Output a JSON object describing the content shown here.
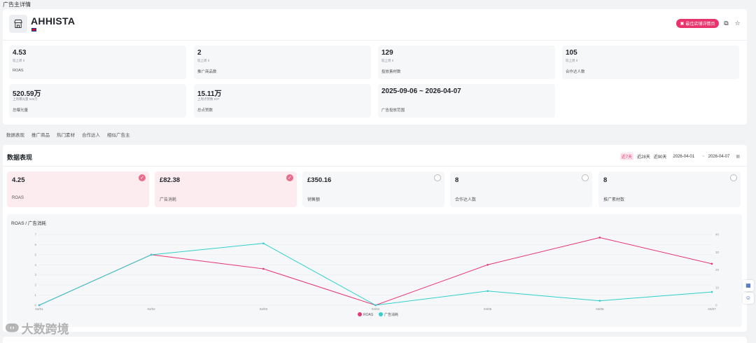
{
  "page_title": "广告主详情",
  "advertiser": {
    "name": "AHHISTA",
    "store_button": "最佳店铺详情页",
    "flag_icon": "uk-flag-icon"
  },
  "stats": [
    {
      "value": "4.53",
      "sub": "较上周 0",
      "label": "ROAS"
    },
    {
      "value": "2",
      "sub": "较上周 0",
      "label": "推广商品数"
    },
    {
      "value": "129",
      "sub": "较上周 0",
      "label": "投放素材数"
    },
    {
      "value": "105",
      "sub": "较上周 0",
      "label": "合作达人数"
    },
    {
      "value": "520.59万",
      "sub": "上周曝光量 536万",
      "label": "总曝光量"
    },
    {
      "value": "15.11万",
      "sub": "上周点赞数 637",
      "label": "总点赞数"
    },
    {
      "value": "2025-09-06 ~ 2026-04-07",
      "sub": "",
      "label": "广告投放范围"
    }
  ],
  "tabs": [
    "数据表现",
    "推广商品",
    "热门素材",
    "合作达人",
    "相似广告主"
  ],
  "performance": {
    "title": "数据表现",
    "ranges": [
      "近7天",
      "近28天",
      "近90天"
    ],
    "active_range": "近7天",
    "date_start": "2026-04-01",
    "date_sep": "~",
    "date_end": "2026-04-07",
    "metrics": [
      {
        "value": "4.25",
        "label": "ROAS",
        "selected": true
      },
      {
        "value": "£82.38",
        "label": "广告消耗",
        "selected": true
      },
      {
        "value": "£350.16",
        "label": "销售额",
        "selected": false
      },
      {
        "value": "8",
        "label": "合作达人数",
        "selected": false
      },
      {
        "value": "8",
        "label": "推广素材数",
        "selected": false
      }
    ]
  },
  "chart_data": {
    "type": "line",
    "title": "ROAS / 广告消耗",
    "categories": [
      "04/01",
      "04/02",
      "04/03",
      "04/04",
      "04/05",
      "04/06",
      "04/07"
    ],
    "series": [
      {
        "name": "ROAS",
        "axis": "left",
        "color": "#e8336d",
        "values": [
          0,
          5,
          3.6,
          0,
          4,
          6.7,
          4.1
        ]
      },
      {
        "name": "广告消耗",
        "axis": "right",
        "color": "#2fd0cf",
        "values": [
          0,
          28.5,
          35,
          0,
          8,
          2.5,
          7.5
        ]
      }
    ],
    "left_axis": {
      "ticks": [
        "0",
        "1",
        "2",
        "3",
        "4",
        "5",
        "6",
        "7"
      ],
      "ylim": [
        0,
        7
      ]
    },
    "right_axis": {
      "ticks": [
        "0",
        "10",
        "20",
        "30",
        "40"
      ],
      "ylim": [
        0,
        40
      ]
    },
    "legend": "bottom-center"
  },
  "watermark": "大数跨境"
}
